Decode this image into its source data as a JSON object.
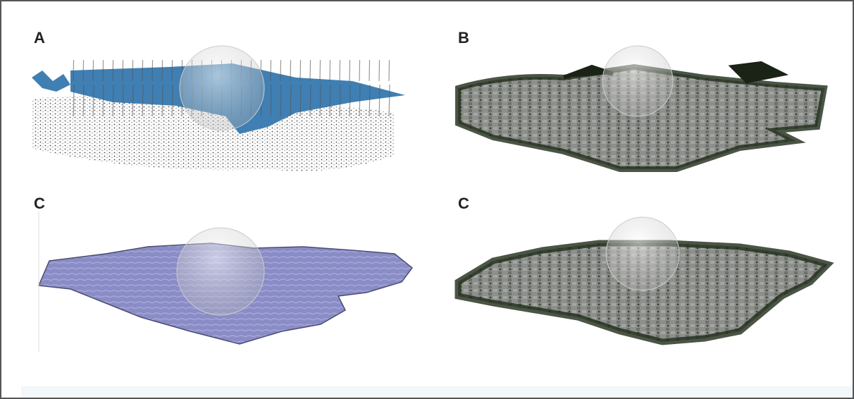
{
  "panels": [
    {
      "label": "A"
    },
    {
      "label": "B"
    },
    {
      "label": "C"
    },
    {
      "label": "C"
    }
  ]
}
